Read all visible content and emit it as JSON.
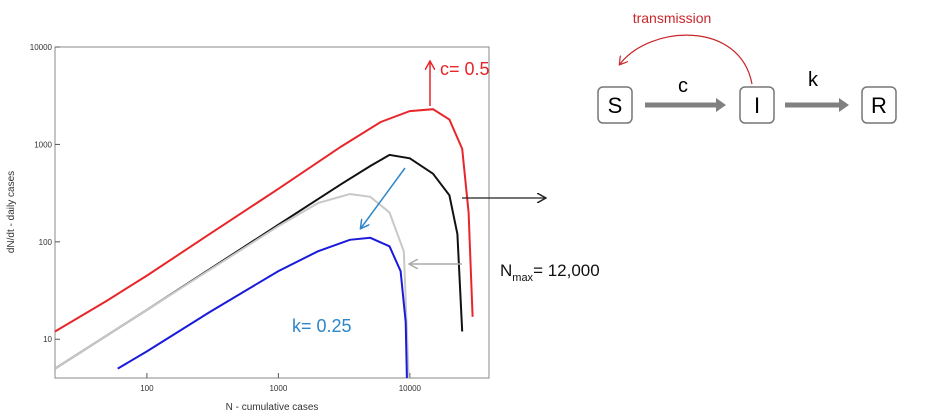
{
  "chart_data": {
    "type": "line",
    "xlabel": "N - cumulative cases",
    "ylabel": "dN/dt - daily cases",
    "xscale": "log",
    "yscale": "log",
    "xlim": [
      20,
      40000
    ],
    "ylim": [
      4,
      10000
    ],
    "xticks": [
      100,
      1000,
      10000
    ],
    "yticks": [
      10,
      100,
      1000,
      10000
    ],
    "series": [
      {
        "color": "#e8262a",
        "x": [
          20,
          50,
          100,
          300,
          1000,
          3000,
          6000,
          10000,
          15000,
          20000,
          25000,
          28000,
          30000
        ],
        "values": [
          12,
          25,
          45,
          120,
          350,
          950,
          1700,
          2200,
          2300,
          1800,
          900,
          200,
          17
        ]
      },
      {
        "color": "#111111",
        "x": [
          20,
          100,
          1000,
          3000,
          5000,
          7000,
          10000,
          15000,
          20000,
          23000,
          25000
        ],
        "values": [
          5,
          20,
          150,
          390,
          600,
          780,
          720,
          500,
          300,
          120,
          12
        ]
      },
      {
        "color": "#c8c8c8",
        "x": [
          20,
          100,
          1000,
          2000,
          3500,
          5000,
          7000,
          9000,
          9800
        ],
        "values": [
          5,
          20,
          145,
          250,
          310,
          290,
          200,
          80,
          4
        ]
      },
      {
        "color": "#1a1adb",
        "x": [
          60,
          100,
          300,
          1000,
          2000,
          3500,
          5000,
          7000,
          8500,
          9300,
          9500
        ],
        "values": [
          5,
          7.5,
          19,
          50,
          80,
          105,
          110,
          90,
          50,
          15,
          4
        ]
      }
    ],
    "annotations": [
      {
        "text": "c= 0.5",
        "color": "#e8262a"
      },
      {
        "text": "k= 0.25",
        "color": "#2e86c8"
      }
    ],
    "nmax": {
      "text": "N",
      "subscript": "max",
      "suffix": "= 12,000"
    }
  },
  "diagram": {
    "nodes": [
      "S",
      "I",
      "R"
    ],
    "edges": [
      {
        "label": "c"
      },
      {
        "label": "k"
      }
    ],
    "feedback": "transmission"
  }
}
